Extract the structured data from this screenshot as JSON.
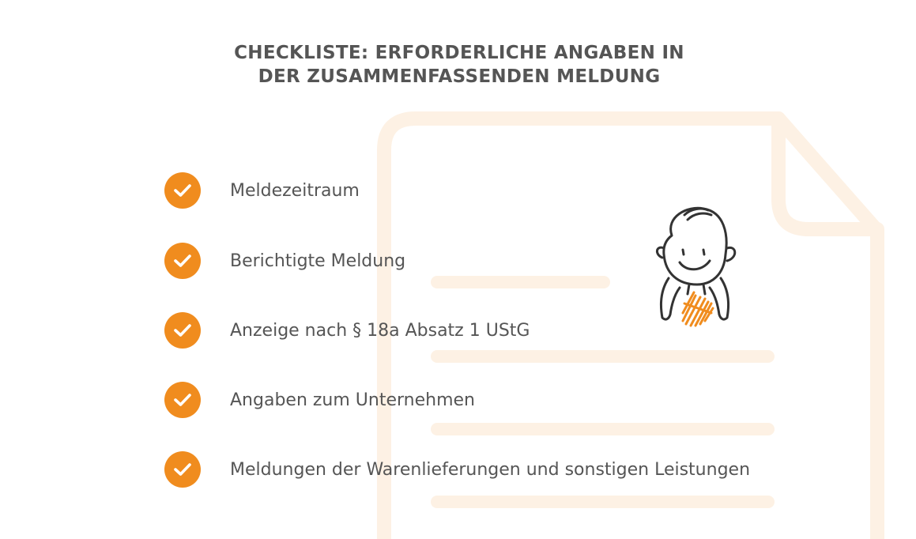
{
  "title": {
    "line1": "CHECKLISTE: ERFORDERLICHE ANGABEN IN",
    "line2": "DER ZUSAMMENFASSENDEN MELDUNG"
  },
  "checklist": {
    "items": [
      {
        "label": "Meldezeitraum"
      },
      {
        "label": "Berichtigte Meldung"
      },
      {
        "label": "Anzeige nach § 18a Absatz 1 UStG"
      },
      {
        "label": "Angaben zum Unternehmen"
      },
      {
        "label": "Meldungen der Warenlieferungen und sonstigen Leistungen"
      }
    ]
  },
  "colors": {
    "accent": "#f08c1e",
    "text": "#555555",
    "document_outline": "#fdf0e3"
  },
  "icons": {
    "check": "check-icon",
    "mascot": "smiling-face-illustration"
  }
}
